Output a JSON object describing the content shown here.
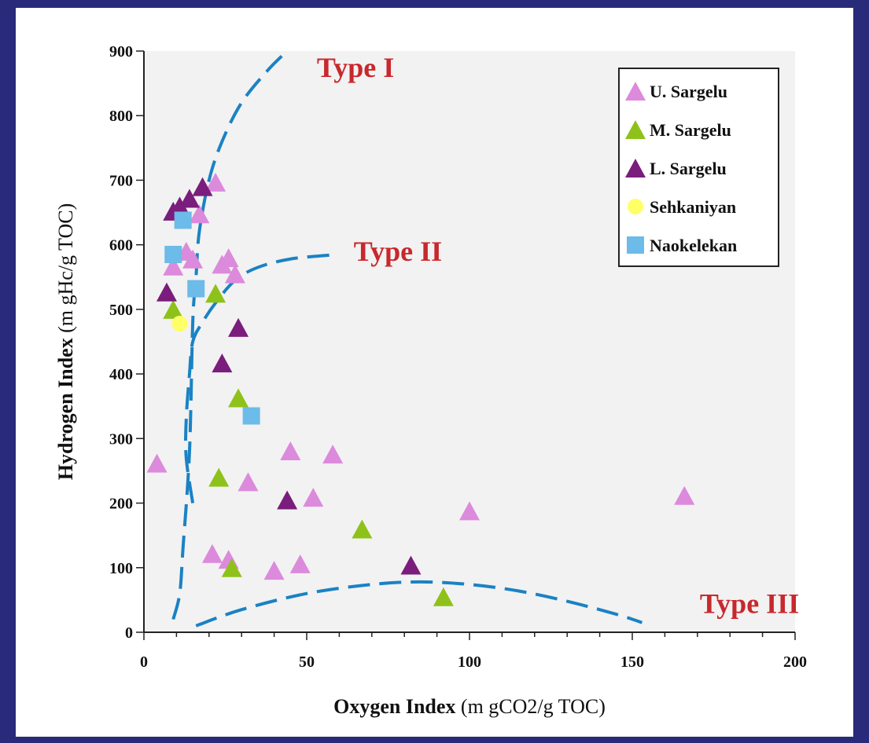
{
  "colors": {
    "frame": "#2a2a7a",
    "plot_bg": "#f2f2f2",
    "curve": "#1a82c4",
    "type_label": "#c8282d",
    "u_sargelu": "#dc8adc",
    "m_sargelu": "#8ec21a",
    "l_sargelu": "#7a1d7c",
    "sehkaniyan": "#ffff66",
    "naokelekan": "#6cbbe8"
  },
  "chart_data": {
    "type": "scatter",
    "xlabel": "Oxygen Index",
    "xlabel_unit": "(m gCO2/g TOC)",
    "ylabel": "Hydrogen Index",
    "ylabel_unit": "(m gHc/g TOC)",
    "xlim": [
      0,
      200
    ],
    "ylim": [
      0,
      900
    ],
    "x_ticks": [
      0,
      50,
      100,
      150,
      200
    ],
    "y_ticks": [
      0,
      100,
      200,
      300,
      400,
      500,
      600,
      700,
      800,
      900
    ],
    "grid": false,
    "legend_position": "top-right",
    "series": [
      {
        "name": "U. Sargelu",
        "marker": "triangle",
        "color": "#dc8adc",
        "points": [
          [
            4,
            262
          ],
          [
            9,
            567
          ],
          [
            13,
            590
          ],
          [
            15,
            578
          ],
          [
            17,
            648
          ],
          [
            22,
            697
          ],
          [
            24,
            570
          ],
          [
            26,
            580
          ],
          [
            28,
            555
          ],
          [
            21,
            122
          ],
          [
            26,
            113
          ],
          [
            32,
            233
          ],
          [
            40,
            96
          ],
          [
            45,
            281
          ],
          [
            48,
            106
          ],
          [
            52,
            209
          ],
          [
            58,
            276
          ],
          [
            100,
            188
          ],
          [
            166,
            212
          ]
        ]
      },
      {
        "name": "M. Sargelu",
        "marker": "triangle",
        "color": "#8ec21a",
        "points": [
          [
            9,
            500
          ],
          [
            22,
            525
          ],
          [
            29,
            363
          ],
          [
            23,
            240
          ],
          [
            27,
            100
          ],
          [
            67,
            160
          ],
          [
            92,
            55
          ]
        ]
      },
      {
        "name": "L. Sargelu",
        "marker": "triangle",
        "color": "#7a1d7c",
        "points": [
          [
            7,
            527
          ],
          [
            9,
            652
          ],
          [
            11,
            660
          ],
          [
            14,
            672
          ],
          [
            18,
            690
          ],
          [
            24,
            417
          ],
          [
            29,
            472
          ],
          [
            44,
            205
          ],
          [
            82,
            104
          ]
        ]
      },
      {
        "name": "Sehkaniyan",
        "marker": "circle",
        "color": "#ffff66",
        "points": [
          [
            11,
            478
          ]
        ]
      },
      {
        "name": "Naokelekan",
        "marker": "square",
        "color": "#6cbbe8",
        "points": [
          [
            9,
            585
          ],
          [
            12,
            638
          ],
          [
            16,
            532
          ],
          [
            33,
            335
          ]
        ]
      }
    ],
    "curves": [
      {
        "label": "Type I",
        "points": [
          [
            9,
            20
          ],
          [
            11,
            60
          ],
          [
            12,
            130
          ],
          [
            14,
            280
          ],
          [
            15,
            480
          ],
          [
            16,
            550
          ],
          [
            17,
            620
          ],
          [
            20,
            700
          ],
          [
            24,
            760
          ],
          [
            30,
            820
          ],
          [
            38,
            870
          ],
          [
            44,
            900
          ]
        ]
      },
      {
        "label": "Type II",
        "points": [
          [
            15,
            200
          ],
          [
            13,
            270
          ],
          [
            13,
            330
          ],
          [
            14,
            400
          ],
          [
            15,
            450
          ],
          [
            18,
            480
          ],
          [
            22,
            510
          ],
          [
            28,
            545
          ],
          [
            35,
            565
          ],
          [
            45,
            578
          ],
          [
            57,
            584
          ]
        ]
      },
      {
        "label": "Type III",
        "points": [
          [
            16,
            10
          ],
          [
            30,
            35
          ],
          [
            50,
            60
          ],
          [
            70,
            74
          ],
          [
            85,
            78
          ],
          [
            100,
            74
          ],
          [
            115,
            64
          ],
          [
            130,
            48
          ],
          [
            145,
            28
          ],
          [
            153,
            15
          ]
        ]
      }
    ],
    "type_labels": [
      {
        "text": "Type I",
        "x": 65,
        "y": 860
      },
      {
        "text": "Type II",
        "x": 78,
        "y": 575
      },
      {
        "text": "Type III",
        "x": 186,
        "y": 30
      }
    ]
  }
}
